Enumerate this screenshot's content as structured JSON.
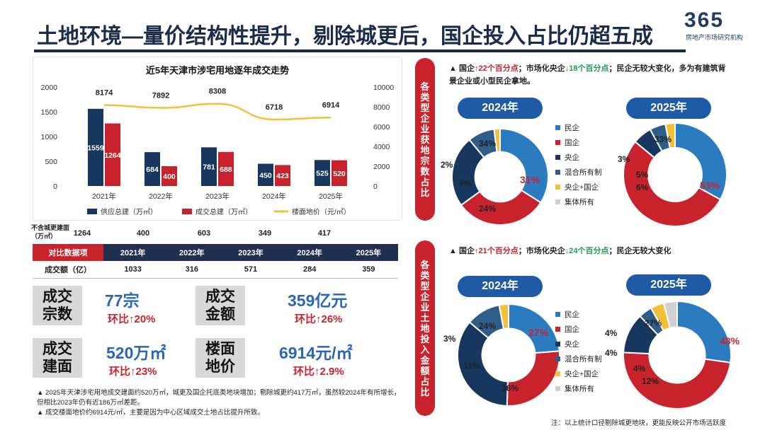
{
  "header": {
    "title": "土地环境—量价结构性提升，剔除城更后，国企投入占比仍超五成",
    "logo_number": "365",
    "logo_sub": "房地产市场研究机构"
  },
  "colors": {
    "navy": "#17375e",
    "red": "#c8232c",
    "gold": "#f2c13a",
    "blue": "#2b7bc0",
    "darknavy": "#1f2f4f"
  },
  "chart_data": {
    "type": "bar",
    "title": "近5年天津市涉宅用地逐年成交走势",
    "categories": [
      "2021年",
      "2022年",
      "2023年",
      "2024年",
      "2025年"
    ],
    "series": [
      {
        "name": "供应总建（万㎡）",
        "type": "bar",
        "axis": "left",
        "values": [
          1559,
          684,
          781,
          450,
          525
        ]
      },
      {
        "name": "成交总建（万㎡）",
        "type": "bar",
        "axis": "left",
        "values": [
          1264,
          400,
          688,
          423,
          520
        ]
      },
      {
        "name": "楼面地价（元/㎡）",
        "type": "line",
        "axis": "right",
        "values": [
          8174,
          7892,
          8308,
          6718,
          6914
        ]
      }
    ],
    "ylim_left": [
      0,
      2000
    ],
    "yticks_left": [
      "2000",
      "1500",
      "1000",
      "500",
      "0"
    ],
    "ylim_right": [
      0,
      10000
    ],
    "yticks_right": [
      "10000",
      "8000",
      "6000",
      "4000",
      "2000",
      "0"
    ]
  },
  "excl": {
    "label": "不含城更建面（万㎡）",
    "values": [
      "1264",
      "400",
      "603",
      "349",
      "417"
    ]
  },
  "table": {
    "header": [
      "对比数据项",
      "2021年",
      "2022年",
      "2023年",
      "2024年",
      "2025年"
    ],
    "row_label": "成交额（亿）",
    "row_values": [
      "1033",
      "316",
      "571",
      "284",
      "359"
    ]
  },
  "kpis": [
    {
      "label1": "成交",
      "label2": "宗数",
      "value": "77宗",
      "change": "环比↑20%"
    },
    {
      "label1": "成交",
      "label2": "金额",
      "value": "359亿元",
      "change": "环比↑26%"
    },
    {
      "label1": "成交",
      "label2": "建面",
      "value": "520万㎡",
      "change": "环比↑23%"
    },
    {
      "label1": "楼面",
      "label2": "地价",
      "value": "6914元/㎡",
      "change": "环比↑2.9%"
    }
  ],
  "notes": [
    "▲ 2025年天津涉宅用地成交建面约520万㎡，城更及国企托底类地块增加；剔除城更约417万㎡，虽然较2024年有所增长，但相比2023年仍有近186万㎡差距。",
    "▲ 成交楼面地价约6914元/㎡，主要是因为中心区域成交土地占比提升所致。"
  ],
  "section1": {
    "side_label": [
      "各",
      "类",
      "型",
      "企",
      "业",
      "获",
      "地",
      "宗",
      "数",
      "占",
      "比"
    ],
    "desc_parts": [
      "▲ 国企",
      "↑22个百分点",
      "；市场化央企",
      "↓18个百分点",
      "；民企无较大变化，多为有建筑背景企业或小型民企拿地。"
    ],
    "year_a": "2024年",
    "year_b": "2025年",
    "donut_a": [
      34,
      31,
      24,
      9,
      2,
      0
    ],
    "donut_a_labels": [
      "34%",
      "31%",
      "24%",
      "9%",
      "2%"
    ],
    "donut_b": [
      33,
      53,
      6,
      5,
      3,
      0
    ],
    "donut_b_labels": [
      "33%",
      "53%",
      "6%",
      "5%",
      "3%"
    ]
  },
  "section2": {
    "side_label": [
      "各",
      "类",
      "型",
      "企",
      "业",
      "土",
      "地",
      "投",
      "入",
      "金",
      "额",
      "占",
      "比"
    ],
    "desc_parts": [
      "▲ 国企",
      "↑21个百分点",
      "；市场化央企",
      "↓24个百分点",
      "；民企无较大变化"
    ],
    "year_a": "2024年",
    "year_b": "2025年",
    "donut_a": [
      24,
      27,
      36,
      11,
      3,
      0
    ],
    "donut_a_labels": [
      "24%",
      "27%",
      "36%",
      "11%",
      "3%"
    ],
    "donut_b": [
      27,
      48,
      12,
      4,
      4,
      4
    ],
    "donut_b_labels": [
      "27%",
      "48%",
      "12%",
      "4%",
      "4%",
      "4%"
    ]
  },
  "legend": [
    "民企",
    "国企",
    "央企",
    "混合所有制",
    "央企+国企",
    "集体所有"
  ],
  "legend_colors": [
    "#2b7bc0",
    "#c8232c",
    "#17375e",
    "#2f5d8a",
    "#f2c13a",
    "#d0d0d0"
  ],
  "footnote": "注：以上统计口径剔除城更地块，更能反映公开市场活跃度"
}
